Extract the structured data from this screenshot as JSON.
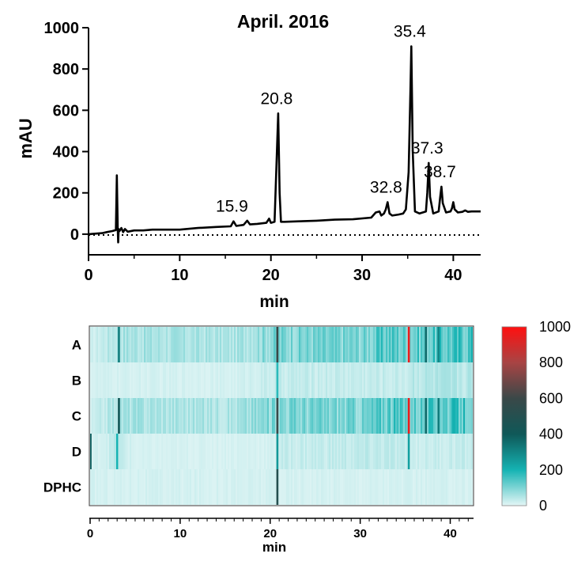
{
  "chart_data": [
    {
      "type": "line",
      "title": "April. 2016",
      "xlabel": "min",
      "ylabel": "mAU",
      "xlim": [
        0,
        43
      ],
      "ylim": [
        -100,
        1000
      ],
      "x_ticks": [
        "0",
        "10",
        "20",
        "30",
        "40"
      ],
      "y_ticks": [
        "0",
        "200",
        "400",
        "600",
        "800",
        "1000"
      ],
      "baseline": {
        "style": "dotted",
        "y": 0
      },
      "grid": false,
      "series": [
        {
          "color": "#000000",
          "x": [
            0,
            1.5,
            2.0,
            2.6,
            3.0,
            3.1,
            3.2,
            3.25,
            3.3,
            3.4,
            3.6,
            3.8,
            4.0,
            4.3,
            5.0,
            6.0,
            7.0,
            8.0,
            10.0,
            12.0,
            14.0,
            15.6,
            15.9,
            16.2,
            17.0,
            17.4,
            17.7,
            18.5,
            19.5,
            19.8,
            20.0,
            20.4,
            20.6,
            20.8,
            20.95,
            21.1,
            21.5,
            23.0,
            25.0,
            27.0,
            29.0,
            31.0,
            31.5,
            31.9,
            32.1,
            32.4,
            32.6,
            32.8,
            33.0,
            33.3,
            34.0,
            34.5,
            34.8,
            35.1,
            35.3,
            35.4,
            35.55,
            35.8,
            36.3,
            37.0,
            37.15,
            37.3,
            37.45,
            37.8,
            38.4,
            38.55,
            38.7,
            38.85,
            39.2,
            39.7,
            39.85,
            40.0,
            40.15,
            40.5,
            41.0,
            41.3,
            41.6,
            42.0,
            43.0
          ],
          "y": [
            0,
            5,
            10,
            15,
            20,
            285,
            30,
            -40,
            25,
            15,
            30,
            10,
            25,
            12,
            18,
            18,
            22,
            22,
            22,
            30,
            35,
            38,
            62,
            40,
            45,
            65,
            47,
            50,
            55,
            75,
            55,
            60,
            320,
            585,
            200,
            60,
            60,
            62,
            65,
            70,
            72,
            80,
            105,
            110,
            90,
            100,
            120,
            155,
            100,
            90,
            95,
            100,
            120,
            300,
            700,
            910,
            400,
            110,
            100,
            110,
            200,
            345,
            180,
            100,
            110,
            175,
            230,
            150,
            105,
            110,
            125,
            155,
            120,
            105,
            108,
            115,
            108,
            110,
            110
          ]
        }
      ],
      "annotations": [
        {
          "text": "15.9",
          "x": 15.9,
          "y": 62
        },
        {
          "text": "20.8",
          "x": 20.8,
          "y": 585
        },
        {
          "text": "32.8",
          "x": 32.8,
          "y": 155
        },
        {
          "text": "35.4",
          "x": 35.4,
          "y": 910
        },
        {
          "text": "37.3",
          "x": 37.3,
          "y": 345
        },
        {
          "text": "38.7",
          "x": 38.7,
          "y": 230
        }
      ]
    },
    {
      "type": "heatmap",
      "xlabel": "min",
      "xlim": [
        0,
        42.5
      ],
      "x_ticks": [
        "0",
        "10",
        "20",
        "30",
        "40"
      ],
      "rows": [
        "A",
        "B",
        "C",
        "D",
        "DPHC"
      ],
      "colorbar": {
        "min": 0,
        "max": 1000,
        "ticks": [
          "1000",
          "800",
          "600",
          "400",
          "200",
          "0"
        ],
        "colors": [
          "#e4f6f6",
          "#15b3b3",
          "#0f5858",
          "#3a4848",
          "#a84444",
          "#ff1010"
        ]
      },
      "row_data": [
        {
          "row": "A",
          "base": [
            [
              0,
              15
            ],
            [
              3.3,
              60
            ],
            [
              16,
              50
            ],
            [
              20.8,
              100
            ],
            [
              30.5,
              100
            ],
            [
              33,
              140
            ],
            [
              35.3,
              120
            ],
            [
              36.5,
              130
            ],
            [
              42.5,
              150
            ]
          ],
          "lines": [
            {
              "x": 3.2,
              "v": 320
            },
            {
              "x": 20.8,
              "v": 600
            },
            {
              "x": 35.4,
              "v": 950
            },
            {
              "x": 37.3,
              "v": 360
            },
            {
              "x": 38.7,
              "v": 300
            }
          ]
        },
        {
          "row": "B",
          "base": [
            [
              0,
              15
            ],
            [
              16,
              15
            ],
            [
              20.8,
              30
            ],
            [
              35.4,
              30
            ],
            [
              35.6,
              45
            ],
            [
              42.5,
              45
            ]
          ],
          "lines": [
            {
              "x": 20.8,
              "v": 180
            }
          ]
        },
        {
          "row": "C",
          "base": [
            [
              0,
              15
            ],
            [
              3.3,
              60
            ],
            [
              16,
              50
            ],
            [
              20.8,
              100
            ],
            [
              30.5,
              100
            ],
            [
              33,
              140
            ],
            [
              35.3,
              120
            ],
            [
              36.5,
              130
            ],
            [
              42.5,
              150
            ]
          ],
          "lines": [
            {
              "x": 3.2,
              "v": 420
            },
            {
              "x": 20.8,
              "v": 600
            },
            {
              "x": 35.4,
              "v": 950
            },
            {
              "x": 37.3,
              "v": 360
            },
            {
              "x": 38.7,
              "v": 320
            }
          ]
        },
        {
          "row": "D",
          "base": [
            [
              0,
              10
            ],
            [
              3,
              35
            ],
            [
              5,
              12
            ],
            [
              20.8,
              15
            ],
            [
              21,
              28
            ],
            [
              33,
              35
            ],
            [
              35.6,
              25
            ],
            [
              42.5,
              30
            ]
          ],
          "lines": [
            {
              "x": 0.05,
              "v": 380
            },
            {
              "x": 3.0,
              "v": 200
            },
            {
              "x": 20.8,
              "v": 260
            },
            {
              "x": 35.4,
              "v": 240
            }
          ]
        },
        {
          "row": "DPHC",
          "base": [
            [
              0,
              15
            ],
            [
              42.5,
              15
            ]
          ],
          "lines": [
            {
              "x": 20.8,
              "v": 500
            }
          ]
        }
      ]
    }
  ]
}
